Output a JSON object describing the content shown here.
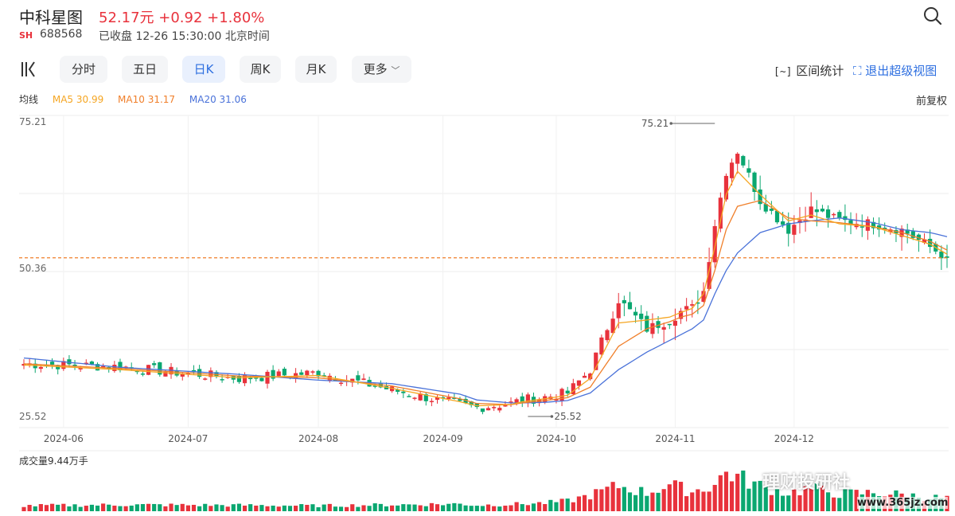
{
  "header": {
    "stock_name": "中科星图",
    "price_line": "52.17元 +0.92 +1.80%",
    "market": "SH",
    "code": "688568",
    "status": "已收盘 12-26 15:30:00 北京时间"
  },
  "toolbar": {
    "tabs": [
      {
        "label": "分时",
        "active": false
      },
      {
        "label": "五日",
        "active": false
      },
      {
        "label": "日K",
        "active": true
      },
      {
        "label": "周K",
        "active": false
      },
      {
        "label": "月K",
        "active": false
      },
      {
        "label": "更多",
        "active": false
      }
    ],
    "range_stats": "区间统计",
    "exit_super": "退出超级视图"
  },
  "legend": {
    "title": "均线",
    "ma5": "MA5 30.99",
    "ma10": "MA10 31.17",
    "ma20": "MA20 31.06",
    "adjust": "前复权"
  },
  "volume_label": "成交量9.44万手",
  "watermark": {
    "brand": "理财投研社",
    "url": "www.365jz.com"
  },
  "colors": {
    "up": "#e8323c",
    "down": "#0aa770",
    "ma5": "#f5a623",
    "ma10": "#f07f2a",
    "ma20": "#4a72d9",
    "accent": "#2e6fe0"
  },
  "chart_data": {
    "type": "candlestick",
    "ylim": [
      25.52,
      75.21
    ],
    "y_ticks": [
      "75.21",
      "50.36",
      "25.52"
    ],
    "x_ticks": [
      "2024-06",
      "2024-07",
      "2024-08",
      "2024-09",
      "2024-10",
      "2024-11",
      "2024-12"
    ],
    "last_price": 52.17,
    "annotations": [
      {
        "label": "75.21",
        "kind": "high"
      },
      {
        "label": "25.52",
        "kind": "low"
      }
    ],
    "anchors": {
      "x": [
        0,
        17,
        38,
        52,
        65,
        77,
        80,
        86,
        88,
        92,
        96,
        100,
        105,
        110,
        114,
        116,
        118,
        120,
        122,
        124,
        126,
        130,
        135,
        139,
        144,
        150,
        155,
        160,
        163
      ],
      "close": [
        34.0,
        33.5,
        31.5,
        32.5,
        29.5,
        27.0,
        26.5,
        27.2,
        27.8,
        28.3,
        29.0,
        33.0,
        45.0,
        40.0,
        41.5,
        43.0,
        43.6,
        46.5,
        58.0,
        67.0,
        70.5,
        62.0,
        57.0,
        60.5,
        58.5,
        58.0,
        57.0,
        54.0,
        52.17
      ],
      "ma5": [
        33.8,
        33.0,
        31.6,
        32.0,
        29.8,
        27.5,
        26.8,
        27.0,
        27.5,
        28.0,
        28.6,
        31.5,
        41.0,
        41.5,
        42.0,
        42.8,
        43.5,
        46.0,
        54.0,
        63.0,
        67.0,
        63.0,
        58.5,
        59.5,
        58.0,
        57.5,
        56.0,
        54.5,
        52.8
      ],
      "ma10": [
        34.0,
        33.2,
        31.9,
        31.6,
        30.2,
        28.0,
        27.2,
        27.0,
        27.3,
        27.7,
        28.2,
        30.0,
        37.0,
        40.0,
        41.2,
        42.0,
        42.5,
        44.0,
        50.0,
        57.0,
        61.0,
        62.0,
        59.0,
        58.5,
        58.2,
        57.5,
        56.5,
        55.0,
        53.5
      ],
      "ma20": [
        35.0,
        33.4,
        32.2,
        31.2,
        30.6,
        28.8,
        27.8,
        27.3,
        27.3,
        27.4,
        27.7,
        29.0,
        33.0,
        36.0,
        38.0,
        39.0,
        40.0,
        41.5,
        46.0,
        50.0,
        53.0,
        56.5,
        58.0,
        58.5,
        59.0,
        58.2,
        57.0,
        56.5,
        55.8
      ],
      "volume": [
        1.2,
        1.4,
        1.3,
        1.2,
        1.4,
        1.6,
        1.3,
        1.5,
        1.6,
        1.8,
        2.2,
        3.5,
        5.5,
        4.0,
        5.8,
        5.0,
        4.3,
        5.0,
        5.8,
        8.5,
        7.5,
        5.5,
        4.0,
        5.0,
        3.8,
        4.0,
        3.6,
        3.0,
        2.8
      ]
    },
    "days": 164
  }
}
